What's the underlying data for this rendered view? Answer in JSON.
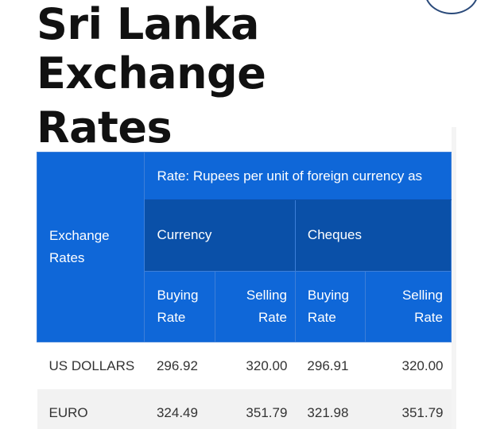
{
  "page": {
    "title_line1": "Sri Lanka Exchange",
    "title_line2": "Rates"
  },
  "table": {
    "header_exchange": "Exchange Rates",
    "header_rate_note": "Rate: Rupees per unit of foreign currency as",
    "group_currency": "Currency",
    "group_cheques": "Cheques",
    "sub_buying": "Buying Rate",
    "sub_selling": "Selling Rate",
    "rows": [
      {
        "name": "US DOLLARS",
        "currency_buying": "296.92",
        "currency_selling": "320.00",
        "cheques_buying": "296.91",
        "cheques_selling": "320.00"
      },
      {
        "name": "EURO",
        "currency_buying": "324.49",
        "currency_selling": "351.79",
        "cheques_buying": "321.98",
        "cheques_selling": "351.79"
      }
    ]
  },
  "colors": {
    "header_blue": "#0f67d8",
    "header_dark_blue": "#0a50a8",
    "row_alt": "#f2f2f2"
  }
}
